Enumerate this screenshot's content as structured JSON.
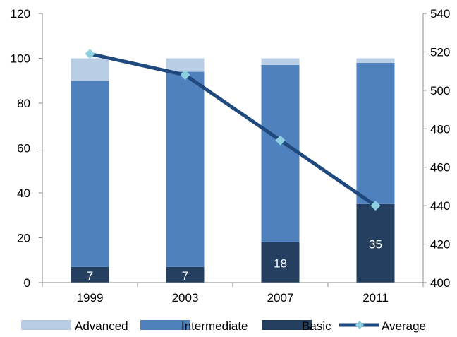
{
  "chart_data": {
    "type": "bar",
    "stacked": true,
    "categories": [
      "1999",
      "2003",
      "2007",
      "2011"
    ],
    "series": [
      {
        "name": "Basic",
        "values": [
          7,
          7,
          18,
          35
        ],
        "color": "#243F60",
        "data_labels": [
          "7",
          "7",
          "18",
          "35"
        ]
      },
      {
        "name": "Intermediate",
        "values": [
          83,
          87,
          79,
          63
        ],
        "color": "#4F81BD"
      },
      {
        "name": "Advanced",
        "values": [
          10,
          6,
          3,
          2
        ],
        "color": "#B9CDE5"
      }
    ],
    "line_series": {
      "name": "Average",
      "values": [
        519,
        508,
        474,
        440
      ],
      "color": "#1F497D",
      "marker_color": "#8ED0E0",
      "axis": "secondary"
    },
    "ylim": [
      0,
      120
    ],
    "yticks": [
      "0",
      "20",
      "40",
      "60",
      "80",
      "100",
      "120"
    ],
    "y2lim": [
      400,
      540
    ],
    "y2ticks": [
      "400",
      "420",
      "440",
      "460",
      "480",
      "500",
      "520",
      "540"
    ],
    "xlabel": "",
    "ylabel": "",
    "grid": false,
    "legend": {
      "placement": "bottom",
      "entries": [
        "Advanced",
        "Intermediate",
        "Basic",
        "Average"
      ]
    }
  }
}
